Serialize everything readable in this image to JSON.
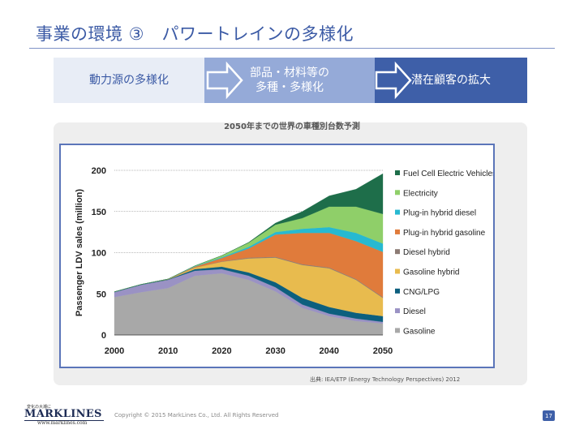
{
  "slide": {
    "title": "事業の環境 ③　パワートレインの多様化",
    "page_number": "17",
    "copyright": "Copyright © 2015 MarkLines Co., Ltd. All Rights Reserved",
    "source": "出典: IEA/ETP (Energy Technology Perspectives) 2012"
  },
  "flow": {
    "step1": "動力源の多様化",
    "step2_line1": "部品・材料等の",
    "step2_line2": "多種・多様化",
    "step3": "潜在顧客の拡大"
  },
  "logo": {
    "tagline": "変化の大潮に",
    "brand": "MARKLINES",
    "url": "www.marklines.com"
  },
  "chart_caption": "2050年までの世界の車種別台数予測",
  "chart_data": {
    "type": "area",
    "stacked": true,
    "ylabel": "Passenger LDV sales (million)",
    "xlabel": "",
    "xlim": [
      2000,
      2050
    ],
    "ylim": [
      0,
      200
    ],
    "xticks": [
      2000,
      2010,
      2020,
      2030,
      2040,
      2050
    ],
    "yticks": [
      0,
      50,
      100,
      150,
      200
    ],
    "gridlines": "horizontal dotted",
    "legend_position": "right",
    "x": [
      2000,
      2005,
      2010,
      2015,
      2020,
      2025,
      2030,
      2035,
      2040,
      2045,
      2050
    ],
    "series": [
      {
        "name": "Gasoline",
        "color": "#a8a8a8",
        "values": [
          46,
          52,
          57,
          72,
          75,
          67,
          53,
          33,
          23,
          17,
          14
        ]
      },
      {
        "name": "Diesel",
        "color": "#9a92c4",
        "values": [
          6,
          9,
          10,
          6,
          5,
          5,
          5,
          4,
          3,
          3,
          2
        ]
      },
      {
        "name": "CNG/LPG",
        "color": "#0d5f7e",
        "values": [
          0.5,
          0.5,
          0.5,
          2,
          3,
          4,
          6,
          8,
          8,
          7,
          7
        ]
      },
      {
        "name": "Gasoline hybrid",
        "color": "#e8bb4e",
        "values": [
          0,
          0,
          0.5,
          2,
          6,
          17,
          30,
          40,
          47,
          40,
          22
        ]
      },
      {
        "name": "Diesel hybrid",
        "color": "#8c7b74",
        "values": [
          0,
          0,
          0,
          0,
          0.5,
          1,
          1,
          1,
          1,
          1,
          1
        ]
      },
      {
        "name": "Plug-in hybrid gasoline",
        "color": "#e07b3b",
        "values": [
          0,
          0,
          0,
          1,
          4,
          11,
          27,
          38,
          42,
          46,
          55
        ]
      },
      {
        "name": "Plug-in hybrid diesel",
        "color": "#27b9d1",
        "values": [
          0,
          0,
          0,
          0.5,
          1,
          2,
          3,
          5,
          7,
          10,
          10
        ]
      },
      {
        "name": "Electricity",
        "color": "#8fcf69",
        "values": [
          0,
          0,
          0,
          0.5,
          2,
          5,
          9,
          13,
          25,
          32,
          36
        ]
      },
      {
        "name": "Fuel Cell Electric Vehicles",
        "color": "#1e6e4a",
        "values": [
          0,
          0,
          0,
          0,
          0,
          0.5,
          2,
          8,
          13,
          21,
          49
        ]
      }
    ]
  }
}
